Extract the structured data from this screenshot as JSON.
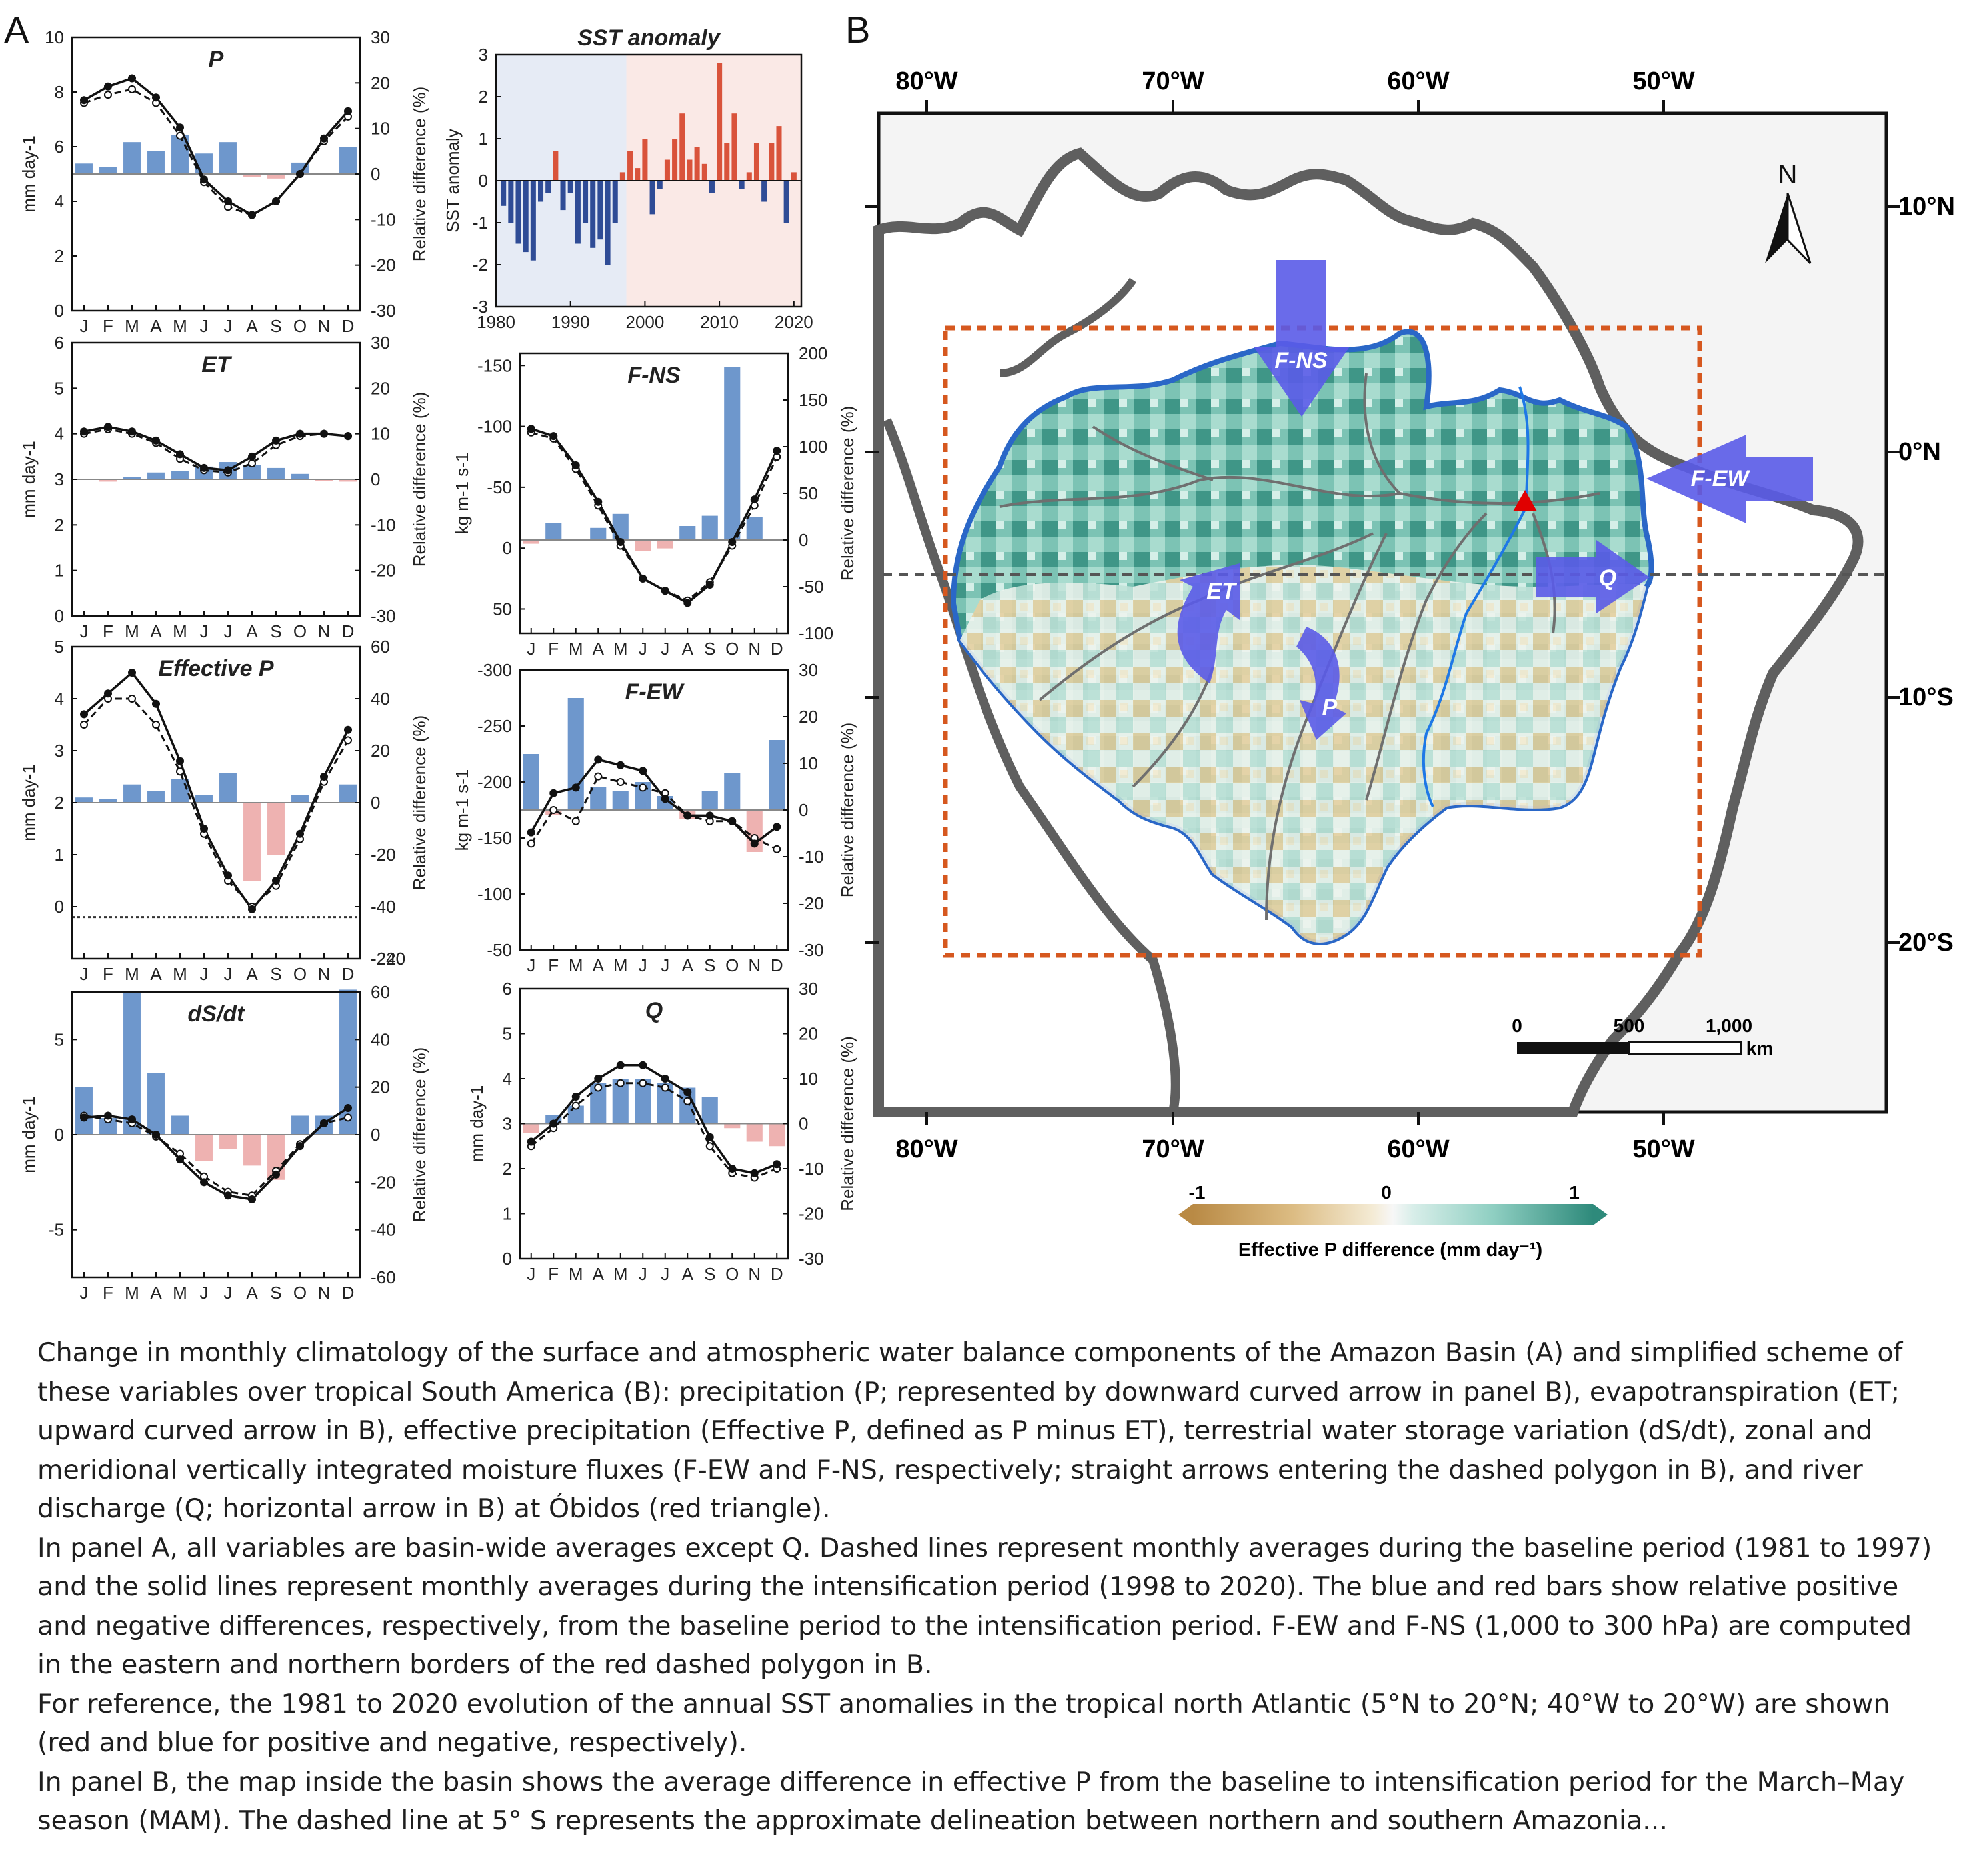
{
  "panel_labels": {
    "a": "A",
    "b": "B"
  },
  "months": [
    "J",
    "F",
    "M",
    "A",
    "M",
    "J",
    "J",
    "A",
    "S",
    "O",
    "N",
    "D"
  ],
  "colors": {
    "pos_bar": "#6e97cc",
    "neg_bar": "#eeb2b1",
    "sst_pos": "#d9533b",
    "sst_neg": "#2f4c96",
    "basin_outline": "#2a67c7",
    "box": "#d6581f",
    "arrow": "#5a5be8"
  },
  "chart_data": [
    {
      "id": "P",
      "type": "bar+line",
      "title": "P",
      "ylabel": "mm day-1",
      "ylabel_right": "Relative difference (%)",
      "ylim": [
        0,
        10
      ],
      "yticks": [
        0,
        2,
        4,
        6,
        8,
        10
      ],
      "ylim_right": [
        -30,
        30
      ],
      "yticks_right": [
        -30,
        -20,
        -10,
        0,
        10,
        20,
        30
      ],
      "categories": [
        "J",
        "F",
        "M",
        "A",
        "M",
        "J",
        "J",
        "A",
        "S",
        "O",
        "N",
        "D"
      ],
      "series": [
        {
          "values": [
            7.7,
            8.2,
            8.5,
            7.8,
            6.7,
            4.8,
            4.0,
            3.5,
            4.0,
            5.0,
            6.3,
            7.3
          ]
        },
        {
          "values": [
            7.6,
            7.9,
            8.1,
            7.6,
            6.4,
            4.7,
            3.8,
            3.5,
            4.0,
            5.0,
            6.2,
            7.1
          ]
        },
        {
          "values": [
            2.3,
            1.5,
            7,
            5,
            8.5,
            4.5,
            7,
            -0.6,
            -1,
            2.5,
            -0.2,
            6
          ]
        }
      ]
    },
    {
      "id": "ET",
      "type": "bar+line",
      "title": "ET",
      "ylabel": "mm day-1",
      "ylabel_right": "Relative difference (%)",
      "ylim": [
        0,
        6
      ],
      "yticks": [
        0,
        1,
        2,
        3,
        4,
        5,
        6
      ],
      "ylim_right": [
        -30,
        30
      ],
      "yticks_right": [
        -30,
        -20,
        -10,
        0,
        10,
        20,
        30
      ],
      "categories": [
        "J",
        "F",
        "M",
        "A",
        "M",
        "J",
        "J",
        "A",
        "S",
        "O",
        "N",
        "D"
      ],
      "series": [
        {
          "values": [
            4.05,
            4.15,
            4.05,
            3.85,
            3.55,
            3.25,
            3.2,
            3.5,
            3.85,
            4.0,
            4.0,
            3.95
          ]
        },
        {
          "values": [
            4.0,
            4.1,
            4.0,
            3.8,
            3.45,
            3.2,
            3.15,
            3.35,
            3.75,
            3.95,
            4.0,
            3.95
          ]
        },
        {
          "values": [
            0,
            -0.5,
            0.5,
            1.5,
            1.8,
            2.8,
            3.8,
            3.2,
            2.5,
            1.2,
            -0.4,
            -0.5
          ]
        }
      ]
    },
    {
      "id": "EffP",
      "type": "bar+line",
      "title": "Effective P",
      "ylabel": "mm day-1",
      "ylabel_right": "Relative difference (%)",
      "ylim": [
        -1,
        5
      ],
      "yticks": [
        0,
        1,
        2,
        3,
        4,
        5
      ],
      "ylim_right": [
        -240,
        60
      ],
      "yticks_right": [
        -240,
        -220,
        -40,
        -20,
        0,
        20,
        40,
        60
      ],
      "axis_break": "-40 to -220",
      "categories": [
        "J",
        "F",
        "M",
        "A",
        "M",
        "J",
        "J",
        "A",
        "S",
        "O",
        "N",
        "D"
      ],
      "series": [
        {
          "values": [
            3.7,
            4.1,
            4.5,
            3.9,
            2.8,
            1.5,
            0.6,
            -0.05,
            0.5,
            1.4,
            2.5,
            3.4
          ]
        },
        {
          "values": [
            3.5,
            4.0,
            4.0,
            3.5,
            2.6,
            1.4,
            0.5,
            0,
            0.4,
            1.3,
            2.4,
            3.2
          ]
        },
        {
          "values": [
            2,
            1.5,
            7,
            4.5,
            9,
            3,
            11.5,
            -30,
            -20,
            3,
            0,
            7
          ]
        }
      ]
    },
    {
      "id": "dSdt",
      "type": "bar+line",
      "title": "dS/dt",
      "ylabel": "mm day-1",
      "ylabel_right": "Relative difference (%)",
      "ylim": [
        -7.5,
        7.5
      ],
      "yticks": [
        -5,
        0,
        5
      ],
      "ylim_right": [
        -60,
        60
      ],
      "yticks_right": [
        -60,
        -40,
        -20,
        0,
        20,
        40,
        60
      ],
      "categories": [
        "J",
        "F",
        "M",
        "A",
        "M",
        "J",
        "J",
        "A",
        "S",
        "O",
        "N",
        "D"
      ],
      "series": [
        {
          "values": [
            0.9,
            1.0,
            0.8,
            0,
            -1.3,
            -2.5,
            -3.2,
            -3.4,
            -2.1,
            -0.6,
            0.6,
            1.4
          ]
        },
        {
          "values": [
            1.0,
            0.8,
            0.6,
            -0.1,
            -1.0,
            -2.2,
            -3.0,
            -3.2,
            -1.9,
            -0.5,
            0.6,
            0.9
          ]
        },
        {
          "values": [
            20,
            7,
            60,
            26,
            8,
            -11,
            -6,
            -13,
            -19,
            8,
            8,
            61
          ]
        }
      ]
    },
    {
      "id": "SST",
      "type": "bar",
      "title": "SST anomaly",
      "ylabel": "SST anomaly",
      "ylim": [
        -3,
        3
      ],
      "yticks": [
        -3,
        -2,
        -1,
        0,
        1,
        2,
        3
      ],
      "xlim": [
        1980,
        2021
      ],
      "xticks": [
        1980,
        1990,
        2000,
        2010,
        2020
      ],
      "periods": [
        [
          1980,
          1997.5
        ],
        [
          1997.5,
          2021
        ]
      ],
      "x": [
        1981,
        1982,
        1983,
        1984,
        1985,
        1986,
        1987,
        1988,
        1989,
        1990,
        1991,
        1992,
        1993,
        1994,
        1995,
        1996,
        1997,
        1998,
        1999,
        2000,
        2001,
        2002,
        2003,
        2004,
        2005,
        2006,
        2007,
        2008,
        2009,
        2010,
        2011,
        2012,
        2013,
        2014,
        2015,
        2016,
        2017,
        2018,
        2019,
        2020
      ],
      "values": [
        -0.6,
        -1.0,
        -1.5,
        -1.7,
        -1.9,
        -0.5,
        -0.3,
        0.7,
        -0.7,
        -0.3,
        -1.5,
        -1.0,
        -1.6,
        -1.4,
        -2.0,
        -1.0,
        0.2,
        0.7,
        0.3,
        1.0,
        -0.8,
        -0.2,
        0.5,
        1.0,
        1.6,
        0.5,
        0.8,
        0.4,
        -0.3,
        2.8,
        0.9,
        1.6,
        -0.2,
        0.2,
        0.9,
        -0.5,
        0.9,
        1.3,
        -1.0,
        0.2
      ]
    },
    {
      "id": "FNS",
      "type": "bar+line",
      "title": "F-NS",
      "ylabel": "kg m-1 s-1",
      "ylabel_right": "Relative difference (%)",
      "ylim": [
        -160,
        70
      ],
      "yticks": [
        -150,
        -100,
        -50,
        0,
        50
      ],
      "inverted": true,
      "ylim_right": [
        -100,
        200
      ],
      "yticks_right": [
        -100,
        -50,
        0,
        50,
        100,
        150,
        200
      ],
      "categories": [
        "J",
        "F",
        "M",
        "A",
        "M",
        "J",
        "J",
        "A",
        "S",
        "O",
        "N",
        "D"
      ],
      "series": [
        {
          "values": [
            -98,
            -92,
            -68,
            -38,
            -5,
            25,
            35,
            45,
            30,
            -5,
            -40,
            -80
          ]
        },
        {
          "values": [
            -95,
            -90,
            -65,
            -35,
            -2,
            25,
            35,
            43,
            28,
            -2,
            -35,
            -75
          ]
        },
        {
          "values": [
            -4,
            18,
            -1,
            13,
            28,
            -12,
            -9,
            15,
            26,
            185,
            25,
            0
          ]
        }
      ]
    },
    {
      "id": "FEW",
      "type": "bar+line",
      "title": "F-EW",
      "ylabel": "kg m-1 s-1",
      "ylabel_right": "Relative difference (%)",
      "ylim": [
        -300,
        -50
      ],
      "yticks": [
        -300,
        -250,
        -200,
        -150,
        -100,
        -50
      ],
      "inverted": true,
      "ylim_right": [
        -30,
        30
      ],
      "yticks_right": [
        -30,
        -20,
        -10,
        0,
        10,
        20,
        30
      ],
      "categories": [
        "J",
        "F",
        "M",
        "A",
        "M",
        "J",
        "J",
        "A",
        "S",
        "O",
        "N",
        "D"
      ],
      "series": [
        {
          "values": [
            -155,
            -190,
            -195,
            -220,
            -215,
            -210,
            -185,
            -170,
            -170,
            -165,
            -145,
            -160
          ]
        },
        {
          "values": [
            -145,
            -175,
            -165,
            -205,
            -200,
            -195,
            -190,
            -170,
            -165,
            -165,
            -150,
            -140
          ]
        },
        {
          "values": [
            12,
            -1,
            24,
            5,
            4,
            6,
            3,
            -2,
            4,
            8,
            -9,
            15
          ]
        }
      ]
    },
    {
      "id": "Q",
      "type": "bar+line",
      "title": "Q",
      "ylabel": "mm day-1",
      "ylabel_right": "Relative difference (%)",
      "ylim": [
        0,
        6
      ],
      "yticks": [
        0,
        1,
        2,
        3,
        4,
        5,
        6
      ],
      "ylim_right": [
        -30,
        30
      ],
      "yticks_right": [
        -30,
        -20,
        -10,
        0,
        10,
        20,
        30
      ],
      "categories": [
        "J",
        "F",
        "M",
        "A",
        "M",
        "J",
        "J",
        "A",
        "S",
        "O",
        "N",
        "D"
      ],
      "series": [
        {
          "values": [
            2.6,
            3.0,
            3.6,
            4.0,
            4.3,
            4.3,
            4.0,
            3.7,
            2.7,
            2.0,
            1.9,
            2.1
          ]
        },
        {
          "values": [
            2.5,
            2.9,
            3.4,
            3.8,
            3.9,
            3.9,
            3.8,
            3.5,
            2.5,
            1.9,
            1.8,
            2.0
          ]
        },
        {
          "values": [
            -2,
            2,
            4,
            9,
            10,
            10,
            9,
            8,
            6,
            -1,
            -4,
            -5
          ]
        }
      ]
    }
  ],
  "map": {
    "lon_labels": [
      "80°W",
      "70°W",
      "60°W",
      "50°W"
    ],
    "lat_labels": [
      "10°N",
      "0°N",
      "10°S",
      "20°S"
    ],
    "north_label": "N",
    "arrow_labels": {
      "fns": "F-NS",
      "few": "F-EW",
      "q": "Q",
      "et": "ET",
      "p": "P"
    },
    "scale_bar": {
      "ticks": [
        "0",
        "500",
        "1,000"
      ],
      "unit": "km"
    },
    "colorbar": {
      "min": "-1",
      "mid": "0",
      "max": "1",
      "label": "Effective P difference (mm day⁻¹)"
    }
  },
  "caption": [
    "Change in monthly climatology of the surface and atmospheric water balance components of the Amazon Basin (A) and simplified scheme of these variables over tropical South America (B): precipitation (P; represented by downward curved arrow in panel B), evapotranspiration (ET; upward curved arrow in B), effective precipitation (Effective P, defined as P minus ET), terrestrial water storage variation (dS/dt), zonal and meridional vertically integrated moisture fluxes (F-EW and F-NS, respectively; straight arrows entering the dashed polygon in B), and river discharge (Q; horizontal arrow in B) at Óbidos (red triangle).",
    "In panel A, all variables are basin-wide averages except Q. Dashed lines represent monthly averages during the baseline period (1981 to 1997) and the solid lines represent monthly averages during the intensification period (1998 to 2020). The blue and red bars show relative positive and negative differences, respectively, from the baseline period to the intensification period. F-EW and F-NS (1,000 to 300 hPa) are computed in the eastern and northern borders of the red dashed polygon in B.",
    "For reference, the 1981 to 2020 evolution of the annual SST anomalies in the tropical north Atlantic (5°N to 20°N; 40°W to 20°W) are shown (red and blue for positive and negative, respectively).",
    "In panel B, the map inside the basin shows the average difference in effective P from the baseline to intensification period for the March–May season (MAM). The dashed line at 5° S represents the approximate delineation between northern and southern Amazonia..."
  ]
}
